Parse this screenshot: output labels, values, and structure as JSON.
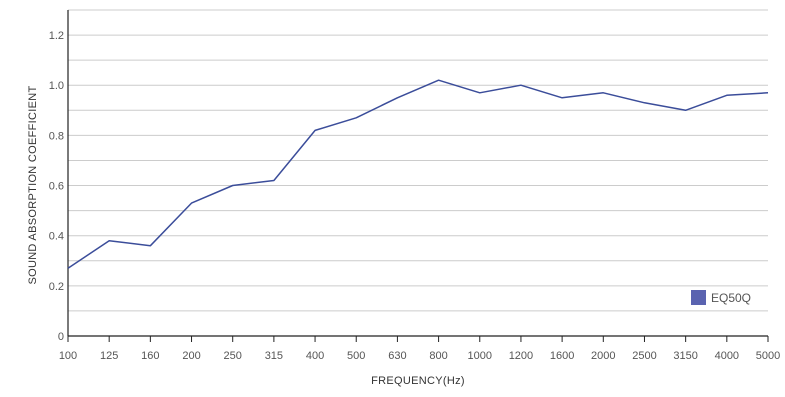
{
  "chart_data": {
    "type": "line",
    "title": "",
    "xlabel": "FREQUENCY(Hz)",
    "ylabel": "SOUND ABSORPTION COEFFICIENT",
    "categories": [
      "100",
      "125",
      "160",
      "200",
      "250",
      "315",
      "400",
      "500",
      "630",
      "800",
      "1000",
      "1200",
      "1600",
      "2000",
      "2500",
      "3150",
      "4000",
      "5000"
    ],
    "series": [
      {
        "name": "EQ50Q",
        "color": "#3b4d9a",
        "values": [
          0.27,
          0.38,
          0.36,
          0.53,
          0.6,
          0.62,
          0.82,
          0.87,
          0.95,
          1.02,
          0.97,
          1.0,
          0.95,
          0.97,
          0.93,
          0.9,
          0.96,
          0.97
        ]
      }
    ],
    "ylim": [
      0,
      1.3
    ],
    "y_tick_labels": [
      "0",
      "0.2",
      "0.4",
      "0.6",
      "0.8",
      "1.0",
      "1.2"
    ],
    "y_tick_values": [
      0,
      0.2,
      0.4,
      0.6,
      0.8,
      1.0,
      1.2
    ],
    "grid": true,
    "legend_position": "bottom-right",
    "legend_swatch_color": "#5a63b0"
  }
}
